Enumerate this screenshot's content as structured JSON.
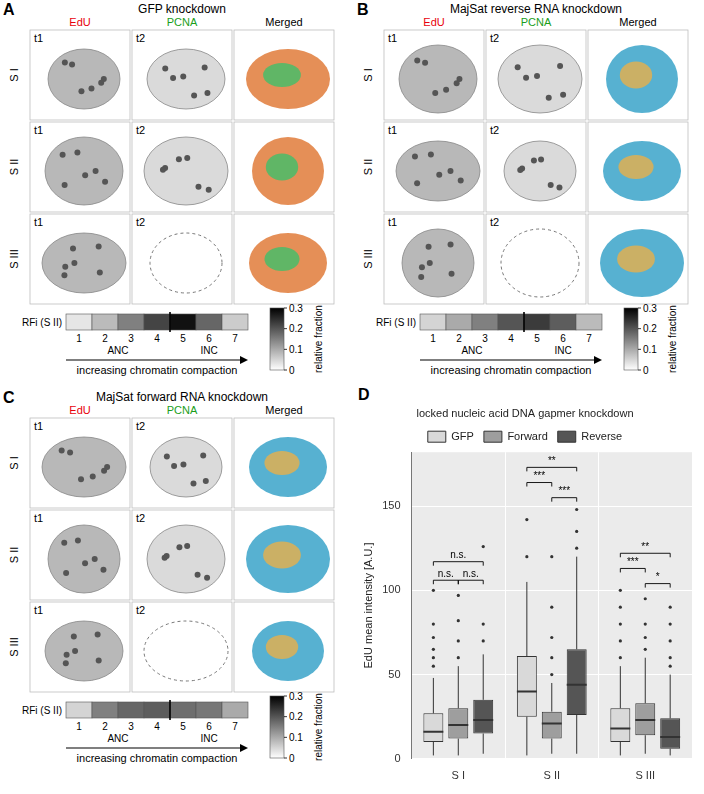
{
  "panels": [
    {
      "letter": "A",
      "title": "GFP knockdown",
      "columns": [
        {
          "label": "EdU",
          "color": "#e8000b"
        },
        {
          "label": "PCNA",
          "color": "#1a9e1a"
        },
        {
          "label": "Merged",
          "color": "#000000"
        }
      ],
      "rows": [
        {
          "label": "S I",
          "tiles": [
            "t1",
            "t2"
          ]
        },
        {
          "label": "S II",
          "tiles": [
            "t1",
            "t2"
          ]
        },
        {
          "label": "S III",
          "tiles": [
            "t1",
            "t2"
          ]
        }
      ],
      "rfi": {
        "label": "RFi (S II)",
        "classes": [
          1,
          2,
          3,
          4,
          5,
          6,
          7
        ],
        "values": [
          0.03,
          0.08,
          0.15,
          0.22,
          0.28,
          0.18,
          0.06
        ],
        "groups": [
          {
            "label": "ANC",
            "classes": [
              1,
              2,
              3,
              4
            ]
          },
          {
            "label": "INC",
            "classes": [
              5,
              6,
              7
            ]
          }
        ],
        "axis_label": "increasing chromatin compaction",
        "colorbar": {
          "title": "relative fraction",
          "range": [
            0,
            0.3
          ],
          "ticks": [
            0,
            0.1,
            0.2,
            0.3
          ]
        }
      }
    },
    {
      "letter": "B",
      "title": "MajSat reverse RNA knockdown",
      "columns": [
        {
          "label": "EdU",
          "color": "#e8000b"
        },
        {
          "label": "PCNA",
          "color": "#1a9e1a"
        },
        {
          "label": "Merged",
          "color": "#000000"
        }
      ],
      "rows": [
        {
          "label": "S I",
          "tiles": [
            "t1",
            "t2"
          ]
        },
        {
          "label": "S II",
          "tiles": [
            "t1",
            "t2"
          ]
        },
        {
          "label": "S III",
          "tiles": [
            "t1",
            "t2"
          ]
        }
      ],
      "rfi": {
        "label": "RFi (S II)",
        "classes": [
          1,
          2,
          3,
          4,
          5,
          6,
          7
        ],
        "values": [
          0.05,
          0.1,
          0.15,
          0.2,
          0.23,
          0.19,
          0.08
        ],
        "groups": [
          {
            "label": "ANC",
            "classes": [
              1,
              2,
              3,
              4
            ]
          },
          {
            "label": "INC",
            "classes": [
              5,
              6,
              7
            ]
          }
        ],
        "axis_label": "increasing chromatin compaction",
        "colorbar": {
          "title": "relative fraction",
          "range": [
            0,
            0.3
          ],
          "ticks": [
            0,
            0.1,
            0.2,
            0.3
          ]
        }
      }
    },
    {
      "letter": "C",
      "title": "MajSat forward RNA knockdown",
      "columns": [
        {
          "label": "EdU",
          "color": "#e8000b"
        },
        {
          "label": "PCNA",
          "color": "#1a9e1a"
        },
        {
          "label": "Merged",
          "color": "#000000"
        }
      ],
      "rows": [
        {
          "label": "S I",
          "tiles": [
            "t1",
            "t2"
          ]
        },
        {
          "label": "S II",
          "tiles": [
            "t1",
            "t2"
          ]
        },
        {
          "label": "S III",
          "tiles": [
            "t1",
            "t2"
          ]
        }
      ],
      "rfi": {
        "label": "RFi (S II)",
        "classes": [
          1,
          2,
          3,
          4,
          5,
          6,
          7
        ],
        "values": [
          0.05,
          0.15,
          0.18,
          0.19,
          0.17,
          0.16,
          0.1
        ],
        "groups": [
          {
            "label": "ANC",
            "classes": [
              1,
              2,
              3,
              4
            ]
          },
          {
            "label": "INC",
            "classes": [
              5,
              6,
              7
            ]
          }
        ],
        "axis_label": "increasing chromatin compaction",
        "colorbar": {
          "title": "relative fraction",
          "range": [
            0,
            0.3
          ],
          "ticks": [
            0,
            0.1,
            0.2,
            0.3
          ]
        }
      }
    }
  ],
  "chart_data": {
    "letter": "D",
    "type": "boxplot",
    "legend_title": "locked nucleic acid DNA gapmer knockdown",
    "legend": "top",
    "y_label": "EdU mean intensity [A.U.]",
    "categories": [
      "S I",
      "S II",
      "S III"
    ],
    "series": [
      {
        "name": "GFP",
        "color": "#d9d9d9",
        "values": [
          {
            "min": 2,
            "q1": 10,
            "median": 16,
            "q3": 27,
            "max": 48,
            "outliers": [
              55,
              60,
              65,
              72,
              80,
              100
            ]
          },
          {
            "min": 2,
            "q1": 25,
            "median": 40,
            "q3": 61,
            "max": 105,
            "outliers": [
              120,
              142
            ]
          },
          {
            "min": 2,
            "q1": 10,
            "median": 18,
            "q3": 30,
            "max": 55,
            "outliers": [
              60,
              70,
              80,
              90,
              100
            ]
          }
        ]
      },
      {
        "name": "Forward",
        "color": "#9e9e9e",
        "values": [
          {
            "min": 2,
            "q1": 12,
            "median": 20,
            "q3": 30,
            "max": 55,
            "outliers": [
              60,
              70,
              82,
              97
            ]
          },
          {
            "min": 3,
            "q1": 12,
            "median": 21,
            "q3": 28,
            "max": 45,
            "outliers": [
              50,
              60,
              72,
              90,
              120
            ]
          },
          {
            "min": 3,
            "q1": 14,
            "median": 23,
            "q3": 33,
            "max": 60,
            "outliers": [
              65,
              72,
              80,
              95
            ]
          }
        ]
      },
      {
        "name": "Reverse",
        "color": "#555555",
        "values": [
          {
            "min": 3,
            "q1": 15,
            "median": 23,
            "q3": 35,
            "max": 62,
            "outliers": [
              70,
              80,
              126
            ]
          },
          {
            "min": 3,
            "q1": 26,
            "median": 44,
            "q3": 65,
            "max": 120,
            "outliers": [
              125,
              135,
              148
            ]
          },
          {
            "min": 2,
            "q1": 6,
            "median": 13,
            "q3": 24,
            "max": 50,
            "outliers": [
              55,
              60,
              70,
              80,
              90
            ]
          }
        ]
      }
    ],
    "annotations": [
      {
        "category": "S I",
        "from": "GFP",
        "to": "Reverse",
        "y": 117,
        "label": "n.s."
      },
      {
        "category": "S I",
        "from": "GFP",
        "to": "Forward",
        "y": 106,
        "label": "n.s."
      },
      {
        "category": "S I",
        "from": "Forward",
        "to": "Reverse",
        "y": 106,
        "label": "n.s."
      },
      {
        "category": "S II",
        "from": "GFP",
        "to": "Reverse",
        "y": 173,
        "label": "**"
      },
      {
        "category": "S II",
        "from": "GFP",
        "to": "Forward",
        "y": 164,
        "label": "***"
      },
      {
        "category": "S II",
        "from": "Forward",
        "to": "Reverse",
        "y": 155,
        "label": "***"
      },
      {
        "category": "S III",
        "from": "GFP",
        "to": "Reverse",
        "y": 122,
        "label": "**"
      },
      {
        "category": "S III",
        "from": "GFP",
        "to": "Forward",
        "y": 113,
        "label": "***"
      },
      {
        "category": "S III",
        "from": "Forward",
        "to": "Reverse",
        "y": 104,
        "label": "*"
      }
    ],
    "ylim": [
      0,
      182
    ],
    "yticks": [
      0,
      50,
      100,
      150
    ],
    "grid": true
  }
}
